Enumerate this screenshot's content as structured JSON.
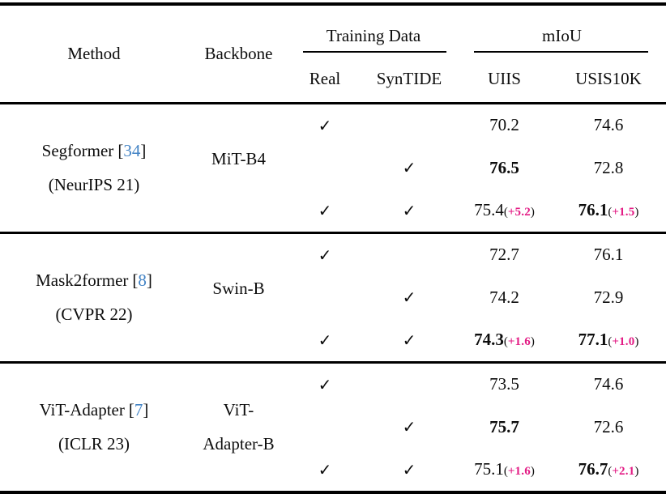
{
  "header": {
    "method": "Method",
    "backbone": "Backbone",
    "training_data": "Training Data",
    "miou": "mIoU",
    "real": "Real",
    "syntide": "SynTIDE",
    "uiis": "UIIS",
    "usis10k": "USIS10K"
  },
  "colors": {
    "citation_link_blue": "#4182c4",
    "delta_magenta": "#e31c85"
  },
  "sections": [
    {
      "method": {
        "name": "Segformer",
        "bracket_open": "[",
        "citation": "34",
        "bracket_close": "]",
        "venue": "(NeurIPS 21)"
      },
      "backbone_line1": "MiT-B4",
      "backbone_line2": "",
      "rows": [
        {
          "real": "✓",
          "syntide": "",
          "uiis": {
            "text": "70.2",
            "class": "num"
          },
          "usis": {
            "text": "74.6",
            "class": "num"
          }
        },
        {
          "real": "",
          "syntide": "✓",
          "uiis": {
            "text": "76.5",
            "class": "num bold"
          },
          "usis": {
            "text": "72.8",
            "class": "num"
          }
        },
        {
          "real": "✓",
          "syntide": "✓",
          "uiis": {
            "text": "75.4",
            "class": "num",
            "open": "(",
            "delta": "+5.2",
            "close": ")"
          },
          "usis": {
            "text": "76.1",
            "class": "num bold",
            "open": "(",
            "delta": "+1.5",
            "close": ")"
          }
        }
      ]
    },
    {
      "method": {
        "name": "Mask2former",
        "bracket_open": "[",
        "citation": "8",
        "bracket_close": "]",
        "venue": "(CVPR 22)"
      },
      "backbone_line1": "Swin-B",
      "backbone_line2": "",
      "rows": [
        {
          "real": "✓",
          "syntide": "",
          "uiis": {
            "text": "72.7",
            "class": "num"
          },
          "usis": {
            "text": "76.1",
            "class": "num"
          }
        },
        {
          "real": "",
          "syntide": "✓",
          "uiis": {
            "text": "74.2",
            "class": "num"
          },
          "usis": {
            "text": "72.9",
            "class": "num"
          }
        },
        {
          "real": "✓",
          "syntide": "✓",
          "uiis": {
            "text": "74.3",
            "class": "num bold",
            "open": "(",
            "delta": "+1.6",
            "close": ")"
          },
          "usis": {
            "text": "77.1",
            "class": "num bold",
            "open": "(",
            "delta": "+1.0",
            "close": ")"
          }
        }
      ]
    },
    {
      "method": {
        "name": "ViT-Adapter",
        "bracket_open": "[",
        "citation": "7",
        "bracket_close": "]",
        "venue": "(ICLR 23)"
      },
      "backbone_line1": "ViT-",
      "backbone_line2": "Adapter-B",
      "rows": [
        {
          "real": "✓",
          "syntide": "",
          "uiis": {
            "text": "73.5",
            "class": "num"
          },
          "usis": {
            "text": "74.6",
            "class": "num"
          }
        },
        {
          "real": "",
          "syntide": "✓",
          "uiis": {
            "text": "75.7",
            "class": "num bold"
          },
          "usis": {
            "text": "72.6",
            "class": "num"
          }
        },
        {
          "real": "✓",
          "syntide": "✓",
          "uiis": {
            "text": "75.1",
            "class": "num",
            "open": "(",
            "delta": "+1.6",
            "close": ")"
          },
          "usis": {
            "text": "76.7",
            "class": "num bold",
            "open": "(",
            "delta": "+2.1",
            "close": ")"
          }
        }
      ]
    }
  ]
}
